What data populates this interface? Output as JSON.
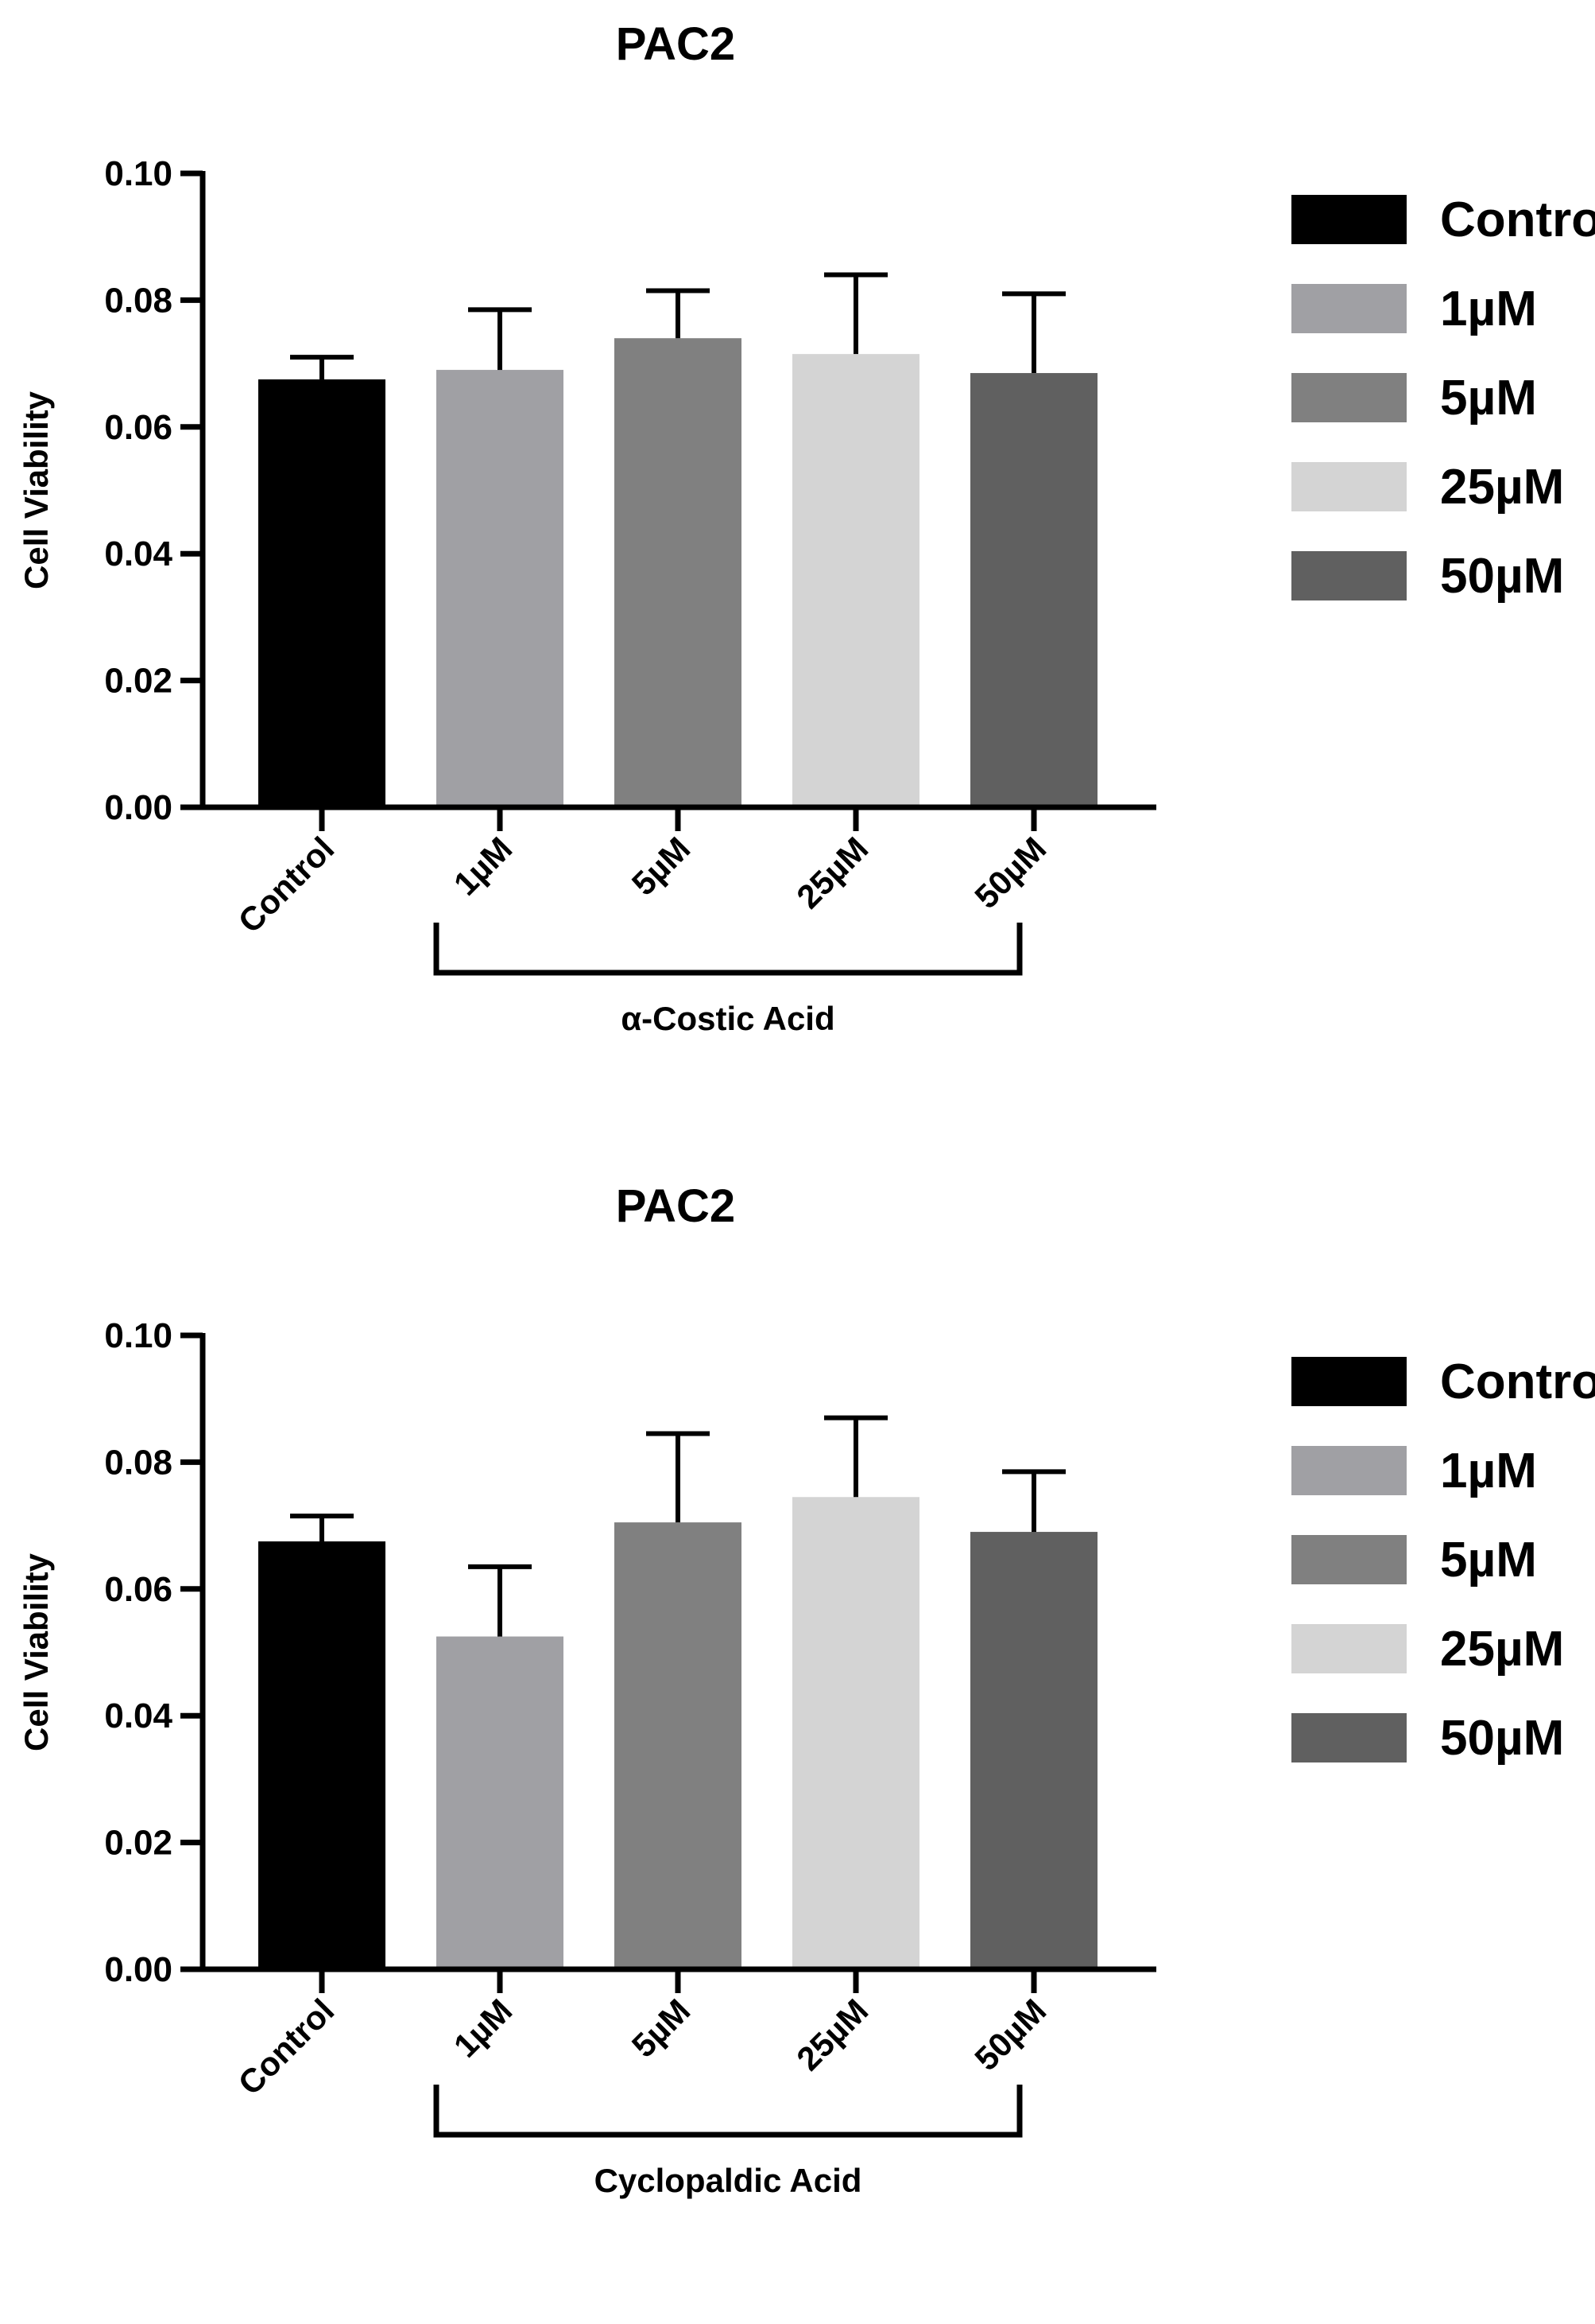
{
  "chart_data": [
    {
      "type": "bar",
      "title": "PAC2",
      "ylabel": "Cell Viability",
      "xlabel": "",
      "ylim": [
        0,
        0.1
      ],
      "yticks": [
        "0.00",
        "0.02",
        "0.04",
        "0.06",
        "0.08",
        "0.10"
      ],
      "categories": [
        "Control",
        "1µM",
        "5µM",
        "25µM",
        "50µM"
      ],
      "values": [
        0.0675,
        0.069,
        0.074,
        0.0715,
        0.0685
      ],
      "errors": [
        0.0035,
        0.0095,
        0.0075,
        0.0125,
        0.0125
      ],
      "colors": [
        "#000000",
        "#a0a0a4",
        "#808080",
        "#d4d4d4",
        "#606060"
      ],
      "group_label": "α-Costic Acid",
      "legend": {
        "position": "right",
        "entries": [
          "Control",
          "1µM",
          "5µM",
          "25µM",
          "50µM"
        ]
      },
      "grid": false
    },
    {
      "type": "bar",
      "title": "PAC2",
      "ylabel": "Cell Viability",
      "xlabel": "",
      "ylim": [
        0,
        0.1
      ],
      "yticks": [
        "0.00",
        "0.02",
        "0.04",
        "0.06",
        "0.08",
        "0.10"
      ],
      "categories": [
        "Control",
        "1µM",
        "5µM",
        "25µM",
        "50µM"
      ],
      "values": [
        0.0675,
        0.0525,
        0.0705,
        0.0745,
        0.069
      ],
      "errors": [
        0.004,
        0.011,
        0.014,
        0.0125,
        0.0095
      ],
      "colors": [
        "#000000",
        "#a0a0a4",
        "#808080",
        "#d4d4d4",
        "#606060"
      ],
      "group_label": "Cyclopaldic Acid",
      "legend": {
        "position": "right",
        "entries": [
          "Control",
          "1µM",
          "5µM",
          "25µM",
          "50µM"
        ]
      },
      "grid": false
    }
  ]
}
